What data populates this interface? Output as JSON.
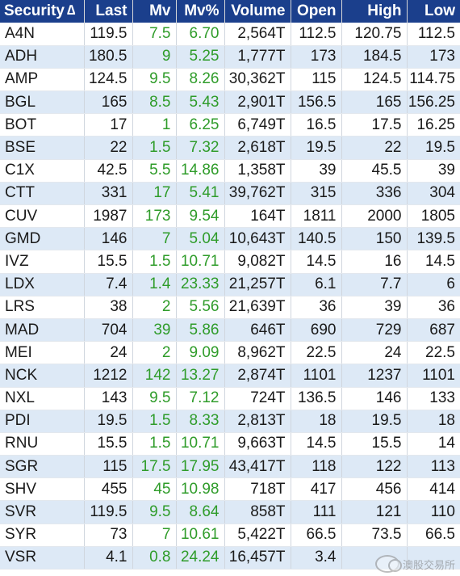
{
  "columns": [
    "Security",
    "Last",
    "Mv",
    "Mv%",
    "Volume",
    "Open",
    "High",
    "Low"
  ],
  "sort_indicator": "∆",
  "rows": [
    [
      "A4N",
      "119.5",
      "7.5",
      "6.70",
      "2,564T",
      "112.5",
      "120.75",
      "112.5"
    ],
    [
      "ADH",
      "180.5",
      "9",
      "5.25",
      "1,777T",
      "173",
      "184.5",
      "173"
    ],
    [
      "AMP",
      "124.5",
      "9.5",
      "8.26",
      "30,362T",
      "115",
      "124.5",
      "114.75"
    ],
    [
      "BGL",
      "165",
      "8.5",
      "5.43",
      "2,901T",
      "156.5",
      "165",
      "156.25"
    ],
    [
      "BOT",
      "17",
      "1",
      "6.25",
      "6,749T",
      "16.5",
      "17.5",
      "16.25"
    ],
    [
      "BSE",
      "22",
      "1.5",
      "7.32",
      "2,618T",
      "19.5",
      "22",
      "19.5"
    ],
    [
      "C1X",
      "42.5",
      "5.5",
      "14.86",
      "1,358T",
      "39",
      "45.5",
      "39"
    ],
    [
      "CTT",
      "331",
      "17",
      "5.41",
      "39,762T",
      "315",
      "336",
      "304"
    ],
    [
      "CUV",
      "1987",
      "173",
      "9.54",
      "164T",
      "1811",
      "2000",
      "1805"
    ],
    [
      "GMD",
      "146",
      "7",
      "5.04",
      "10,643T",
      "140.5",
      "150",
      "139.5"
    ],
    [
      "IVZ",
      "15.5",
      "1.5",
      "10.71",
      "9,082T",
      "14.5",
      "16",
      "14.5"
    ],
    [
      "LDX",
      "7.4",
      "1.4",
      "23.33",
      "21,257T",
      "6.1",
      "7.7",
      "6"
    ],
    [
      "LRS",
      "38",
      "2",
      "5.56",
      "21,639T",
      "36",
      "39",
      "36"
    ],
    [
      "MAD",
      "704",
      "39",
      "5.86",
      "646T",
      "690",
      "729",
      "687"
    ],
    [
      "MEI",
      "24",
      "2",
      "9.09",
      "8,962T",
      "22.5",
      "24",
      "22.5"
    ],
    [
      "NCK",
      "1212",
      "142",
      "13.27",
      "2,874T",
      "1101",
      "1237",
      "1101"
    ],
    [
      "NXL",
      "143",
      "9.5",
      "7.12",
      "724T",
      "136.5",
      "146",
      "133"
    ],
    [
      "PDI",
      "19.5",
      "1.5",
      "8.33",
      "2,813T",
      "18",
      "19.5",
      "18"
    ],
    [
      "RNU",
      "15.5",
      "1.5",
      "10.71",
      "9,663T",
      "14.5",
      "15.5",
      "14"
    ],
    [
      "SGR",
      "115",
      "17.5",
      "17.95",
      "43,417T",
      "118",
      "122",
      "113"
    ],
    [
      "SHV",
      "455",
      "45",
      "10.98",
      "718T",
      "417",
      "456",
      "414"
    ],
    [
      "SVR",
      "119.5",
      "9.5",
      "8.64",
      "858T",
      "111",
      "121",
      "110"
    ],
    [
      "SYR",
      "73",
      "7",
      "10.61",
      "5,422T",
      "66.5",
      "73.5",
      "66.5"
    ],
    [
      "VSR",
      "4.1",
      "0.8",
      "24.24",
      "16,457T",
      "3.4",
      "",
      ""
    ]
  ],
  "watermark": {
    "text": "澳股交易所",
    "icon": "wechat-logo-icon"
  },
  "colors": {
    "header_bg": "#1b3f8c",
    "header_text": "#ffffff",
    "row_alt": "#dde9f6",
    "positive": "#2f9c2a",
    "text": "#1a1a1a"
  }
}
